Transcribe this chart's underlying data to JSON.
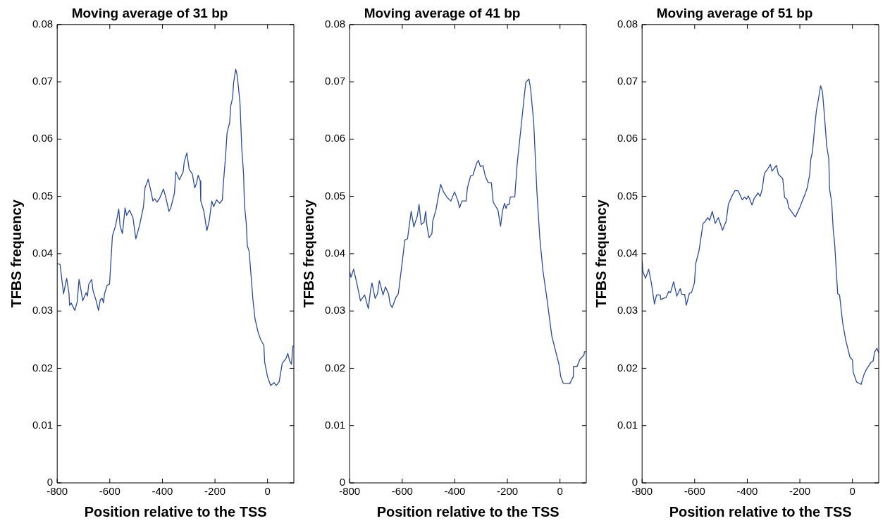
{
  "chart_data": [
    {
      "type": "line",
      "title": "Moving average of 31 bp",
      "xlabel": "Position relative to the TSS",
      "ylabel": "TFBS frequency",
      "xlim": [
        -800,
        100
      ],
      "xticks": [
        -800,
        -600,
        -400,
        -200,
        0
      ],
      "ylim": [
        0,
        0.08
      ],
      "yticks": [
        0,
        0.01,
        0.02,
        0.03,
        0.04,
        0.05,
        0.06,
        0.07,
        0.08
      ],
      "grid": false,
      "legend": false,
      "marker": "none",
      "series": [
        {
          "color": "#2b4ba0",
          "x": [
            -800,
            -789,
            -776,
            -764,
            -755,
            -753,
            -747,
            -733,
            -724,
            -717,
            -710,
            -703,
            -690,
            -685,
            -680,
            -669,
            -664,
            -652,
            -643,
            -636,
            -629,
            -624,
            -620,
            -610,
            -601,
            -590,
            -578,
            -566,
            -561,
            -552,
            -547,
            -542,
            -536,
            -525,
            -512,
            -501,
            -487,
            -472,
            -466,
            -454,
            -444,
            -436,
            -429,
            -421,
            -410,
            -396,
            -388,
            -375,
            -368,
            -354,
            -349,
            -335,
            -321,
            -317,
            -307,
            -298,
            -286,
            -277,
            -270,
            -264,
            -256,
            -254,
            -242,
            -231,
            -222,
            -212,
            -205,
            -194,
            -182,
            -172,
            -168,
            -160,
            -154,
            -144,
            -140,
            -133,
            -129,
            -121,
            -115,
            -105,
            -98,
            -91,
            -88,
            -81,
            -77,
            -70,
            -65,
            -56,
            -48,
            -37,
            -28,
            -14,
            -11,
            0,
            12,
            25,
            33,
            44,
            56,
            70,
            77,
            84,
            91,
            96,
            100
          ],
          "values": [
            0.0383,
            0.0381,
            0.033,
            0.0357,
            0.033,
            0.031,
            0.0314,
            0.0301,
            0.0316,
            0.0355,
            0.0338,
            0.0318,
            0.0332,
            0.0326,
            0.0347,
            0.0355,
            0.0336,
            0.0318,
            0.0301,
            0.032,
            0.0322,
            0.0314,
            0.033,
            0.0345,
            0.0347,
            0.0431,
            0.0449,
            0.0478,
            0.0449,
            0.0435,
            0.0457,
            0.048,
            0.0467,
            0.0476,
            0.0463,
            0.0426,
            0.0449,
            0.0482,
            0.0515,
            0.053,
            0.051,
            0.0492,
            0.0496,
            0.049,
            0.0497,
            0.0513,
            0.05,
            0.0474,
            0.048,
            0.0506,
            0.0543,
            0.0529,
            0.0543,
            0.056,
            0.0576,
            0.0547,
            0.0539,
            0.0515,
            0.0523,
            0.0537,
            0.0527,
            0.0492,
            0.0474,
            0.044,
            0.0457,
            0.0492,
            0.0482,
            0.0494,
            0.0488,
            0.0494,
            0.0523,
            0.0568,
            0.0611,
            0.0629,
            0.0658,
            0.0672,
            0.0699,
            0.0722,
            0.071,
            0.0664,
            0.0584,
            0.0537,
            0.0486,
            0.0453,
            0.0414,
            0.0404,
            0.0375,
            0.0322,
            0.0287,
            0.0265,
            0.0252,
            0.024,
            0.0211,
            0.0185,
            0.017,
            0.0175,
            0.017,
            0.0176,
            0.0209,
            0.0217,
            0.0226,
            0.0213,
            0.0207,
            0.0238,
            0.0239
          ]
        }
      ]
    },
    {
      "type": "line",
      "title": "Moving average of 41 bp",
      "xlabel": "Position relative to the TSS",
      "ylabel": "TFBS frequency",
      "xlim": [
        -800,
        100
      ],
      "xticks": [
        -800,
        -600,
        -400,
        -200,
        0
      ],
      "ylim": [
        0,
        0.08
      ],
      "yticks": [
        0,
        0.01,
        0.02,
        0.03,
        0.04,
        0.05,
        0.06,
        0.07,
        0.08
      ],
      "grid": false,
      "legend": false,
      "marker": "none",
      "series": [
        {
          "color": "#2b4ba0",
          "x": [
            -800,
            -795,
            -785,
            -771,
            -759,
            -743,
            -729,
            -720,
            -715,
            -703,
            -694,
            -687,
            -673,
            -664,
            -652,
            -646,
            -638,
            -624,
            -615,
            -606,
            -590,
            -580,
            -566,
            -556,
            -543,
            -536,
            -528,
            -517,
            -511,
            -506,
            -498,
            -487,
            -484,
            -472,
            -461,
            -454,
            -443,
            -429,
            -415,
            -401,
            -388,
            -382,
            -373,
            -357,
            -352,
            -340,
            -331,
            -317,
            -310,
            -303,
            -293,
            -284,
            -273,
            -261,
            -254,
            -236,
            -226,
            -219,
            -211,
            -205,
            -200,
            -193,
            -189,
            -172,
            -163,
            -149,
            -137,
            -130,
            -118,
            -112,
            -100,
            -88,
            -77,
            -65,
            -51,
            -31,
            -4,
            3,
            12,
            37,
            50,
            51,
            65,
            75,
            91,
            93,
            100
          ],
          "values": [
            0.0369,
            0.0359,
            0.0373,
            0.0345,
            0.0318,
            0.0328,
            0.0304,
            0.0338,
            0.0349,
            0.0322,
            0.033,
            0.0353,
            0.0328,
            0.0342,
            0.033,
            0.0312,
            0.0306,
            0.0324,
            0.033,
            0.0363,
            0.0424,
            0.0426,
            0.0474,
            0.0447,
            0.0465,
            0.0486,
            0.0451,
            0.0455,
            0.0474,
            0.0449,
            0.0428,
            0.0435,
            0.0457,
            0.0476,
            0.0504,
            0.0521,
            0.0508,
            0.0498,
            0.0492,
            0.0508,
            0.0492,
            0.048,
            0.0492,
            0.0492,
            0.0515,
            0.0536,
            0.0537,
            0.0558,
            0.0563,
            0.0552,
            0.0554,
            0.0535,
            0.0524,
            0.0524,
            0.049,
            0.0476,
            0.0448,
            0.0474,
            0.0488,
            0.0479,
            0.0486,
            0.0486,
            0.0499,
            0.0499,
            0.0556,
            0.0617,
            0.067,
            0.0699,
            0.0705,
            0.0689,
            0.0629,
            0.051,
            0.0429,
            0.0371,
            0.0326,
            0.0256,
            0.0207,
            0.0185,
            0.0174,
            0.0173,
            0.0185,
            0.0203,
            0.0203,
            0.0215,
            0.0223,
            0.0229,
            0.0229
          ]
        }
      ]
    },
    {
      "type": "line",
      "title": "Moving average of 51 bp",
      "xlabel": "Position relative to the TSS",
      "ylabel": "TFBS frequency",
      "xlim": [
        -800,
        100
      ],
      "xticks": [
        -800,
        -600,
        -400,
        -200,
        0
      ],
      "ylim": [
        0,
        0.08
      ],
      "yticks": [
        0,
        0.01,
        0.02,
        0.03,
        0.04,
        0.05,
        0.06,
        0.07,
        0.08
      ],
      "grid": false,
      "legend": false,
      "marker": "none",
      "series": [
        {
          "color": "#2b4ba0",
          "x": [
            -800,
            -797,
            -787,
            -775,
            -764,
            -753,
            -745,
            -731,
            -729,
            -708,
            -699,
            -692,
            -680,
            -668,
            -655,
            -649,
            -638,
            -632,
            -620,
            -612,
            -601,
            -596,
            -584,
            -568,
            -562,
            -550,
            -543,
            -533,
            -522,
            -510,
            -494,
            -480,
            -472,
            -459,
            -447,
            -435,
            -419,
            -410,
            -403,
            -396,
            -382,
            -373,
            -359,
            -351,
            -343,
            -335,
            -321,
            -312,
            -306,
            -289,
            -282,
            -265,
            -258,
            -249,
            -242,
            -217,
            -209,
            -200,
            -191,
            -180,
            -172,
            -163,
            -158,
            -152,
            -144,
            -137,
            -130,
            -121,
            -114,
            -107,
            -98,
            -90,
            -87,
            -79,
            -73,
            -68,
            -56,
            -49,
            -37,
            -25,
            -9,
            0,
            3,
            16,
            33,
            44,
            53,
            70,
            79,
            84,
            93,
            100
          ],
          "values": [
            0.0388,
            0.0369,
            0.0357,
            0.0373,
            0.0347,
            0.0312,
            0.0328,
            0.0328,
            0.032,
            0.0324,
            0.0334,
            0.0332,
            0.0351,
            0.0326,
            0.0339,
            0.0329,
            0.0329,
            0.031,
            0.0331,
            0.0332,
            0.0349,
            0.0383,
            0.0404,
            0.0453,
            0.0455,
            0.0463,
            0.0458,
            0.0474,
            0.0453,
            0.0463,
            0.0441,
            0.0457,
            0.0486,
            0.05,
            0.051,
            0.051,
            0.0494,
            0.0499,
            0.0495,
            0.0501,
            0.0485,
            0.0497,
            0.0506,
            0.05,
            0.0513,
            0.054,
            0.0549,
            0.0556,
            0.0544,
            0.0554,
            0.0539,
            0.0531,
            0.0498,
            0.0495,
            0.048,
            0.0464,
            0.0472,
            0.0481,
            0.0492,
            0.0504,
            0.0515,
            0.0537,
            0.0566,
            0.0578,
            0.0619,
            0.065,
            0.0668,
            0.0693,
            0.0683,
            0.0644,
            0.0589,
            0.0566,
            0.0513,
            0.049,
            0.0441,
            0.042,
            0.033,
            0.0328,
            0.0279,
            0.0248,
            0.0219,
            0.0215,
            0.0193,
            0.0176,
            0.0172,
            0.0189,
            0.0198,
            0.021,
            0.0213,
            0.0228,
            0.0235,
            0.0227
          ]
        }
      ]
    }
  ]
}
